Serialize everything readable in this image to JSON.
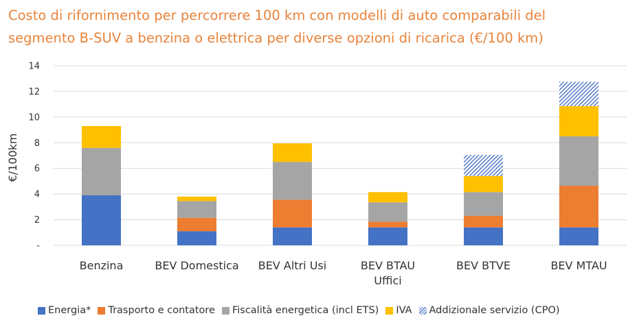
{
  "title_lines": [
    "Costo di rifornimento per percorrere 100 km con modelli di auto comparabili del",
    "segmento B-SUV a benzina o elettrica per diverse opzioni di ricarica (€/100 km)"
  ],
  "chart_data": {
    "type": "bar",
    "stacked": true,
    "title": "Costo di rifornimento per percorrere 100 km con modelli di auto comparabili del segmento B-SUV a benzina o elettrica per diverse opzioni di ricarica (€/100 km)",
    "xlabel": "",
    "ylabel": "€/100km",
    "ylim": [
      0,
      14
    ],
    "yticks": [
      0,
      2,
      4,
      6,
      8,
      10,
      12,
      14
    ],
    "ytick_labels": [
      "-",
      "2",
      "4",
      "6",
      "8",
      "10",
      "12",
      "14"
    ],
    "grid": true,
    "legend_position": "bottom",
    "categories": [
      [
        "Benzina"
      ],
      [
        "BEV Domestica"
      ],
      [
        "BEV Altri Usi"
      ],
      [
        "BEV BTAU",
        "Uffici"
      ],
      [
        "BEV BTVE"
      ],
      [
        "BEV MTAU"
      ]
    ],
    "series": [
      {
        "name": "Energia*",
        "color": "#4472C4",
        "pattern": "solid",
        "values": [
          3.9,
          1.1,
          1.4,
          1.4,
          1.4,
          1.4
        ]
      },
      {
        "name": "Trasporto e contatore",
        "color": "#ED7D31",
        "pattern": "solid",
        "values": [
          0,
          1.05,
          2.15,
          0.45,
          0.9,
          3.25
        ]
      },
      {
        "name": "Fiscalità energetica (incl ETS)",
        "color": "#A5A5A5",
        "pattern": "solid",
        "values": [
          3.7,
          1.3,
          2.95,
          1.5,
          1.85,
          3.85
        ]
      },
      {
        "name": "IVA",
        "color": "#FFC000",
        "pattern": "solid",
        "values": [
          1.7,
          0.35,
          1.45,
          0.8,
          1.25,
          2.35
        ]
      },
      {
        "name": "Addizionale servizio (CPO)",
        "color": "#4472C4",
        "pattern": "hatch",
        "values": [
          0,
          0,
          0,
          0,
          1.65,
          1.9
        ]
      }
    ]
  }
}
